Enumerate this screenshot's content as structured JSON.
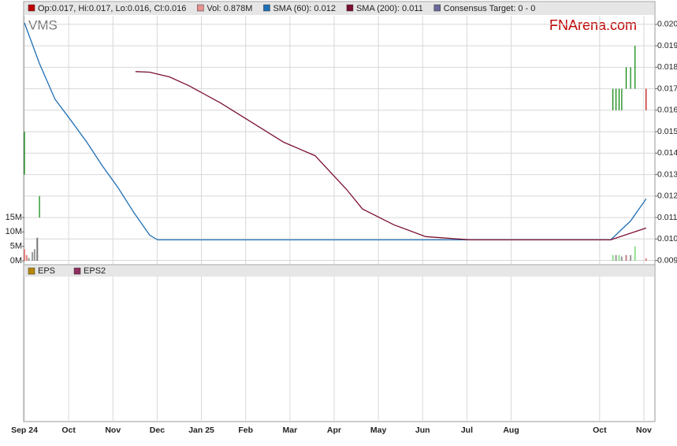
{
  "chart_data": {
    "type": "stock",
    "ticker": "VMS",
    "brand": "FNArena.com",
    "legend": [
      "Op:0.017, Hi:0.017, Lo:0.016, Cl:0.016",
      "Vol: 0.878M",
      "SMA (60): 0.012",
      "SMA (200): 0.011",
      "Consensus Target: 0 - 0"
    ],
    "legend_colors": [
      "#c00000",
      "#e89090",
      "#1f6fb5",
      "#7b1030",
      "#6a6a9a"
    ],
    "lower_legend": [
      "EPS",
      "EPS2"
    ],
    "lower_legend_colors": [
      "#b8860b",
      "#903060"
    ],
    "xlim": [
      0,
      14.25
    ],
    "xticks": [
      {
        "value": 0,
        "label": "Sep 24"
      },
      {
        "value": 1,
        "label": "Oct"
      },
      {
        "value": 2,
        "label": "Nov"
      },
      {
        "value": 3,
        "label": "Dec"
      },
      {
        "value": 4,
        "label": "Jan 25"
      },
      {
        "value": 5,
        "label": "Feb"
      },
      {
        "value": 6,
        "label": "Mar"
      },
      {
        "value": 7,
        "label": "Apr"
      },
      {
        "value": 8,
        "label": "May"
      },
      {
        "value": 9,
        "label": "Jun"
      },
      {
        "value": 10,
        "label": "Jul"
      },
      {
        "value": 11,
        "label": "Aug"
      },
      {
        "value": 13,
        "label": "Oct"
      },
      {
        "value": 14,
        "label": "Nov"
      }
    ],
    "ylim": [
      0.0088,
      0.0204
    ],
    "yticks": [
      {
        "value": 0.02,
        "label": "0.020"
      },
      0.019,
      0.018,
      0.017,
      0.016,
      0.015,
      0.014,
      0.013,
      0.012,
      0.011,
      {
        "value": 0.01,
        "label": "0.010"
      },
      0.009
    ],
    "vol_ylim": [
      0,
      15
    ],
    "vol_ticks": [
      {
        "value": 15,
        "label": "15M"
      },
      {
        "value": 10,
        "label": "10M"
      },
      {
        "value": 5,
        "label": "5M"
      },
      {
        "value": 0,
        "label": "0M"
      }
    ],
    "grid": true,
    "series": [
      {
        "name": "SMA (60)",
        "color": "#1f6fb5",
        "x": [
          0,
          0.34,
          0.69,
          1.05,
          1.41,
          1.76,
          2.12,
          2.48,
          2.83,
          3.01,
          13.25,
          13.7,
          14.05
        ],
        "values": [
          0.02007,
          0.01817,
          0.01652,
          0.01553,
          0.01451,
          0.01341,
          0.01238,
          0.01121,
          0.01018,
          0.00996,
          0.00996,
          0.01084,
          0.01187
        ]
      },
      {
        "name": "SMA (200)",
        "color": "#7b1030",
        "x": [
          2.51,
          2.83,
          3.28,
          3.72,
          4.43,
          5.15,
          5.86,
          6.57,
          7.28,
          7.64,
          8.35,
          9.07,
          10.08,
          13.25,
          14.05
        ],
        "values": [
          0.0178,
          0.01777,
          0.01755,
          0.01714,
          0.01634,
          0.01542,
          0.01451,
          0.01388,
          0.01231,
          0.0114,
          0.01066,
          0.01011,
          0.00996,
          0.00996,
          0.01051
        ]
      }
    ],
    "price_bars": {
      "x": [
        0,
        0.34,
        13.3,
        13.37,
        13.44,
        13.5,
        13.6,
        13.7,
        13.8,
        14.05
      ],
      "low": [
        0.013,
        0.011,
        0.016,
        0.016,
        0.016,
        0.016,
        0.017,
        0.017,
        0.017,
        0.016
      ],
      "high": [
        0.015,
        0.012,
        0.017,
        0.017,
        0.017,
        0.017,
        0.018,
        0.018,
        0.019,
        0.017
      ],
      "colors": [
        "#008000",
        "#008000",
        "#008000",
        "#008000",
        "#008000",
        "#008000",
        "#008000",
        "#008000",
        "#008000",
        "#c00000"
      ]
    },
    "volume": {
      "x": [
        0,
        0.05,
        0.1,
        0.18,
        0.23,
        0.29,
        13.3,
        13.37,
        13.44,
        13.5,
        13.6,
        13.7,
        13.8,
        14.05
      ],
      "values": [
        4,
        2,
        1,
        3,
        4,
        8,
        2,
        2,
        2,
        1.5,
        2,
        2,
        5,
        0.878
      ],
      "colors": [
        "#e08080",
        "#e08080",
        "#999999",
        "#999999",
        "#999999",
        "#777777",
        "#90e090",
        "#999999",
        "#90e090",
        "#999999",
        "#c08080",
        "#999999",
        "#90e090",
        "#e08080"
      ]
    }
  }
}
